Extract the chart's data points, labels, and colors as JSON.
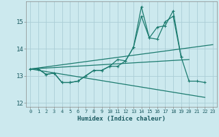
{
  "xlabel": "Humidex (Indice chaleur)",
  "background_color": "#cce9ee",
  "grid_color": "#aacdd6",
  "line_color": "#1a7a6e",
  "xlim": [
    -0.5,
    23.5
  ],
  "ylim": [
    11.85,
    15.75
  ],
  "yticks": [
    12,
    13,
    14,
    15
  ],
  "xticks": [
    0,
    1,
    2,
    3,
    4,
    5,
    6,
    7,
    8,
    9,
    10,
    11,
    12,
    13,
    14,
    15,
    16,
    17,
    18,
    19,
    20,
    21,
    22,
    23
  ],
  "series1_x": [
    0,
    1,
    2,
    3,
    4,
    5,
    6,
    7,
    8,
    9,
    10,
    11,
    12,
    13,
    14,
    15,
    16,
    17,
    18,
    19,
    20,
    21,
    22
  ],
  "series1_y": [
    13.25,
    13.25,
    13.05,
    13.1,
    12.75,
    12.75,
    12.8,
    13.0,
    13.2,
    13.2,
    13.35,
    13.35,
    13.55,
    14.05,
    15.2,
    14.4,
    14.35,
    15.0,
    15.2,
    13.7,
    12.8,
    12.8,
    12.75
  ],
  "series2_x": [
    0,
    1,
    2,
    3,
    4,
    5,
    6,
    7,
    8,
    9,
    10,
    11,
    12,
    13,
    14,
    15,
    16,
    17,
    18,
    19
  ],
  "series2_y": [
    13.25,
    13.25,
    13.05,
    13.1,
    12.75,
    12.75,
    12.8,
    13.0,
    13.2,
    13.2,
    13.35,
    13.6,
    13.55,
    14.05,
    15.55,
    14.4,
    14.8,
    14.85,
    15.4,
    13.7
  ],
  "trend1_x": [
    0,
    23
  ],
  "trend1_y": [
    13.25,
    14.15
  ],
  "trend2_x": [
    0,
    22
  ],
  "trend2_y": [
    13.25,
    12.2
  ],
  "trend3_x": [
    0,
    20
  ],
  "trend3_y": [
    13.25,
    13.6
  ]
}
